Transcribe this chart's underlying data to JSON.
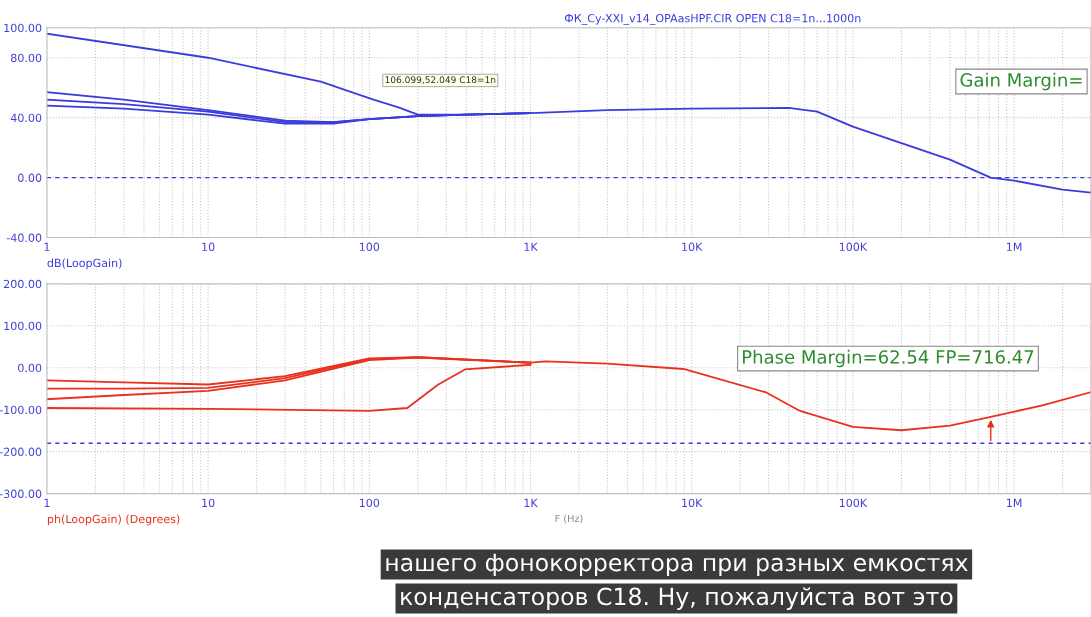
{
  "chart_data": [
    {
      "type": "line",
      "title": "ФК_Су-XXI_v14_OPAasHPF.CIR OPEN C18=1n...1000n",
      "log": "x",
      "grid": true,
      "line_style": "solid",
      "marker": "none",
      "xlim": [
        1,
        3000000
      ],
      "xticks": [
        1,
        10,
        100,
        {
          "value": 1000,
          "label": "1K"
        },
        {
          "value": 10000,
          "label": "10K"
        },
        {
          "value": 100000,
          "label": "100K"
        },
        {
          "value": 1000000,
          "label": "1M"
        }
      ],
      "ylim": [
        -40,
        100
      ],
      "yticks": [
        {
          "value": -40,
          "label": "-40.00"
        },
        {
          "value": 0,
          "label": "0.00"
        },
        {
          "value": 40,
          "label": "40.00"
        },
        {
          "value": 80,
          "label": "80.00"
        },
        {
          "value": 100,
          "label": "100.00"
        }
      ],
      "ref_lines": [
        {
          "axis": "y",
          "value": 0,
          "color": "#3c3cdc",
          "line_style": "dashed"
        }
      ],
      "series": [
        {
          "color": "#3c3cdc",
          "x": [
            1,
            10,
            50,
            106.099,
            150,
            200,
            400,
            1000,
            3000,
            10000,
            40000,
            60000,
            100000,
            200000,
            400000,
            716470,
            1000000,
            2000000,
            3000000
          ],
          "values": [
            96,
            80,
            64,
            52.049,
            47,
            42,
            42,
            43,
            45,
            46,
            46.5,
            44,
            34,
            23,
            12,
            0,
            -2,
            -8,
            -10
          ]
        },
        {
          "color": "#3c3cdc",
          "x": [
            1,
            3,
            10,
            30,
            60,
            100,
            200,
            400,
            1000
          ],
          "values": [
            57,
            52,
            45,
            38,
            37,
            39,
            41,
            42,
            43
          ]
        },
        {
          "color": "#3c3cdc",
          "x": [
            1,
            3,
            10,
            30,
            60,
            100,
            200,
            400,
            1000
          ],
          "values": [
            52,
            49,
            44,
            37,
            37,
            39,
            41,
            42,
            43
          ]
        },
        {
          "color": "#3c3cdc",
          "x": [
            1,
            3,
            10,
            30,
            60,
            100,
            200,
            400,
            1000
          ],
          "values": [
            48,
            46,
            42,
            36,
            36,
            39,
            41,
            42,
            43
          ]
        }
      ],
      "annotations": [
        {
          "text": "106.099,52.049 C18=1n",
          "x": 106.099,
          "y": 52.049
        },
        "dB(LoopGain)",
        "Gain Margin="
      ]
    },
    {
      "type": "line",
      "xlabel": "F (Hz)",
      "log": "x",
      "grid": true,
      "line_style": "solid",
      "marker": "none",
      "xlim": [
        1,
        3000000
      ],
      "xticks": [
        1,
        10,
        100,
        {
          "value": 1000,
          "label": "1K"
        },
        {
          "value": 10000,
          "label": "10K"
        },
        {
          "value": 100000,
          "label": "100K"
        },
        {
          "value": 1000000,
          "label": "1M"
        }
      ],
      "ylim": [
        -300,
        200
      ],
      "yticks": [
        {
          "value": -300,
          "label": "-300.00"
        },
        {
          "value": -200,
          "label": "-200.00"
        },
        {
          "value": -100,
          "label": "-100.00"
        },
        {
          "value": 0,
          "label": "0.00"
        },
        {
          "value": 100,
          "label": "100.00"
        },
        {
          "value": 200,
          "label": "200.00"
        }
      ],
      "ref_lines": [
        {
          "axis": "y",
          "value": -180,
          "color": "#3c3cdc",
          "line_style": "dashed"
        }
      ],
      "series": [
        {
          "color": "#e8321e",
          "x": [
            1,
            3,
            10,
            30,
            100,
            200,
            1000,
            1240,
            3000,
            8900,
            29000,
            47000,
            100000,
            200000,
            400000,
            716470,
            1500000,
            3000000
          ],
          "values": [
            -30,
            -35,
            -40,
            -20,
            22,
            25,
            12,
            15,
            10,
            -3,
            -59,
            -103,
            -141,
            -149,
            -138,
            -117,
            -90,
            -58
          ]
        },
        {
          "color": "#e8321e",
          "x": [
            1,
            3,
            10,
            30,
            100,
            200,
            1000
          ],
          "values": [
            -50,
            -50,
            -48,
            -25,
            20,
            25,
            12
          ]
        },
        {
          "color": "#e8321e",
          "x": [
            1,
            3,
            10,
            30,
            100,
            200,
            1000
          ],
          "values": [
            -75,
            -65,
            -55,
            -30,
            18,
            24,
            12
          ]
        },
        {
          "color": "#e8321e",
          "x": [
            1,
            10,
            100,
            172,
            268,
            392,
            1000
          ],
          "values": [
            -96,
            -98,
            -103,
            -96,
            -40,
            -4,
            7
          ]
        }
      ],
      "annotations": [
        {
          "text": "Phase Margin=62.54 FP=716.47",
          "x": 716470,
          "y": -117.46
        },
        "ph(LoopGain) (Degrees)",
        "нашего фонокорректора при разных емкостях",
        "конденсаторов С18. Ну, пожалуйста вот это"
      ]
    }
  ]
}
